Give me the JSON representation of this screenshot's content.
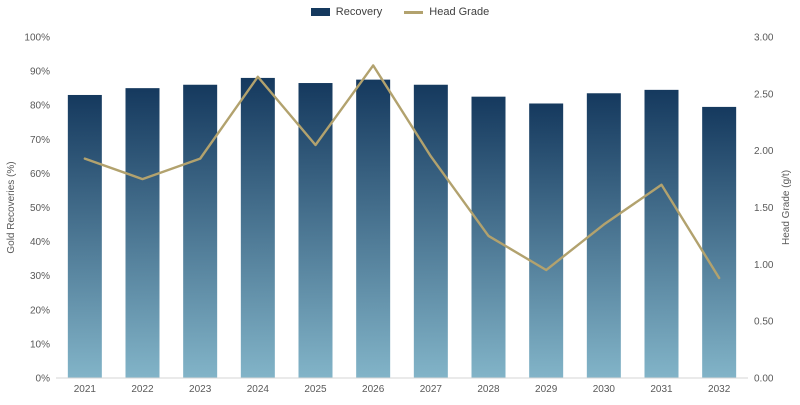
{
  "chart_data": {
    "type": "combo",
    "title": "",
    "categories": [
      "2021",
      "2022",
      "2023",
      "2024",
      "2025",
      "2026",
      "2027",
      "2028",
      "2029",
      "2030",
      "2031",
      "2032"
    ],
    "series": [
      {
        "name": "Recovery",
        "type": "bar",
        "axis": "left",
        "values": [
          83,
          85,
          86,
          88,
          86.5,
          87.5,
          86,
          82.5,
          80.5,
          83.5,
          84.5,
          79.5
        ]
      },
      {
        "name": "Head Grade",
        "type": "line",
        "axis": "right",
        "values": [
          1.93,
          1.75,
          1.93,
          2.65,
          2.05,
          2.75,
          1.95,
          1.25,
          0.95,
          1.35,
          1.7,
          0.88
        ]
      }
    ],
    "left_axis": {
      "label": "Gold Recoveries (%)",
      "min": 0,
      "max": 100,
      "step": 10,
      "tick_suffix": "%"
    },
    "right_axis": {
      "label": "Head Grade (g/t)",
      "min": 0,
      "max": 3,
      "step": 0.5,
      "decimals": 2
    },
    "legend_position": "top",
    "grid": false,
    "colors": {
      "bar_top": "#15395e",
      "bar_bottom": "#82b4c8",
      "line": "#b2a26e",
      "axis_text": "#595959",
      "axis_line": "#d6d6d6"
    }
  }
}
